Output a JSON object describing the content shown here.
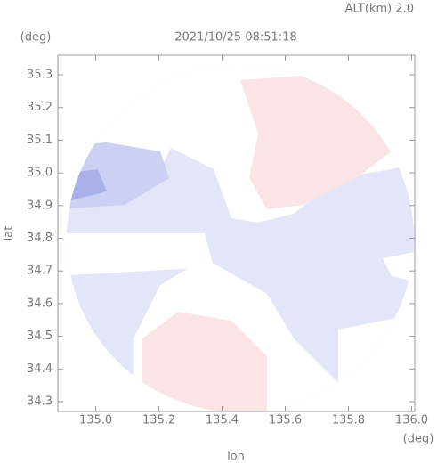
{
  "chart_data": {
    "type": "radar-map",
    "title": "2021/10/25 08:51:18",
    "annotation": "ALT(km) 2.0",
    "x_label": "lon",
    "y_label": "lat",
    "x_unit": "(deg)",
    "y_unit": "(deg)",
    "xlim": [
      134.88,
      136.01
    ],
    "ylim": [
      34.27,
      35.36
    ],
    "xticks": [
      {
        "value": 135,
        "label": "135.0"
      },
      135.2,
      135.4,
      135.6,
      135.8,
      {
        "value": 136,
        "label": "136.0"
      }
    ],
    "yticks": [
      34.3,
      34.4,
      34.5,
      34.6,
      34.7,
      34.8,
      34.9,
      {
        "value": 35,
        "label": "35.0"
      },
      35.1,
      35.2,
      35.3
    ]
  }
}
